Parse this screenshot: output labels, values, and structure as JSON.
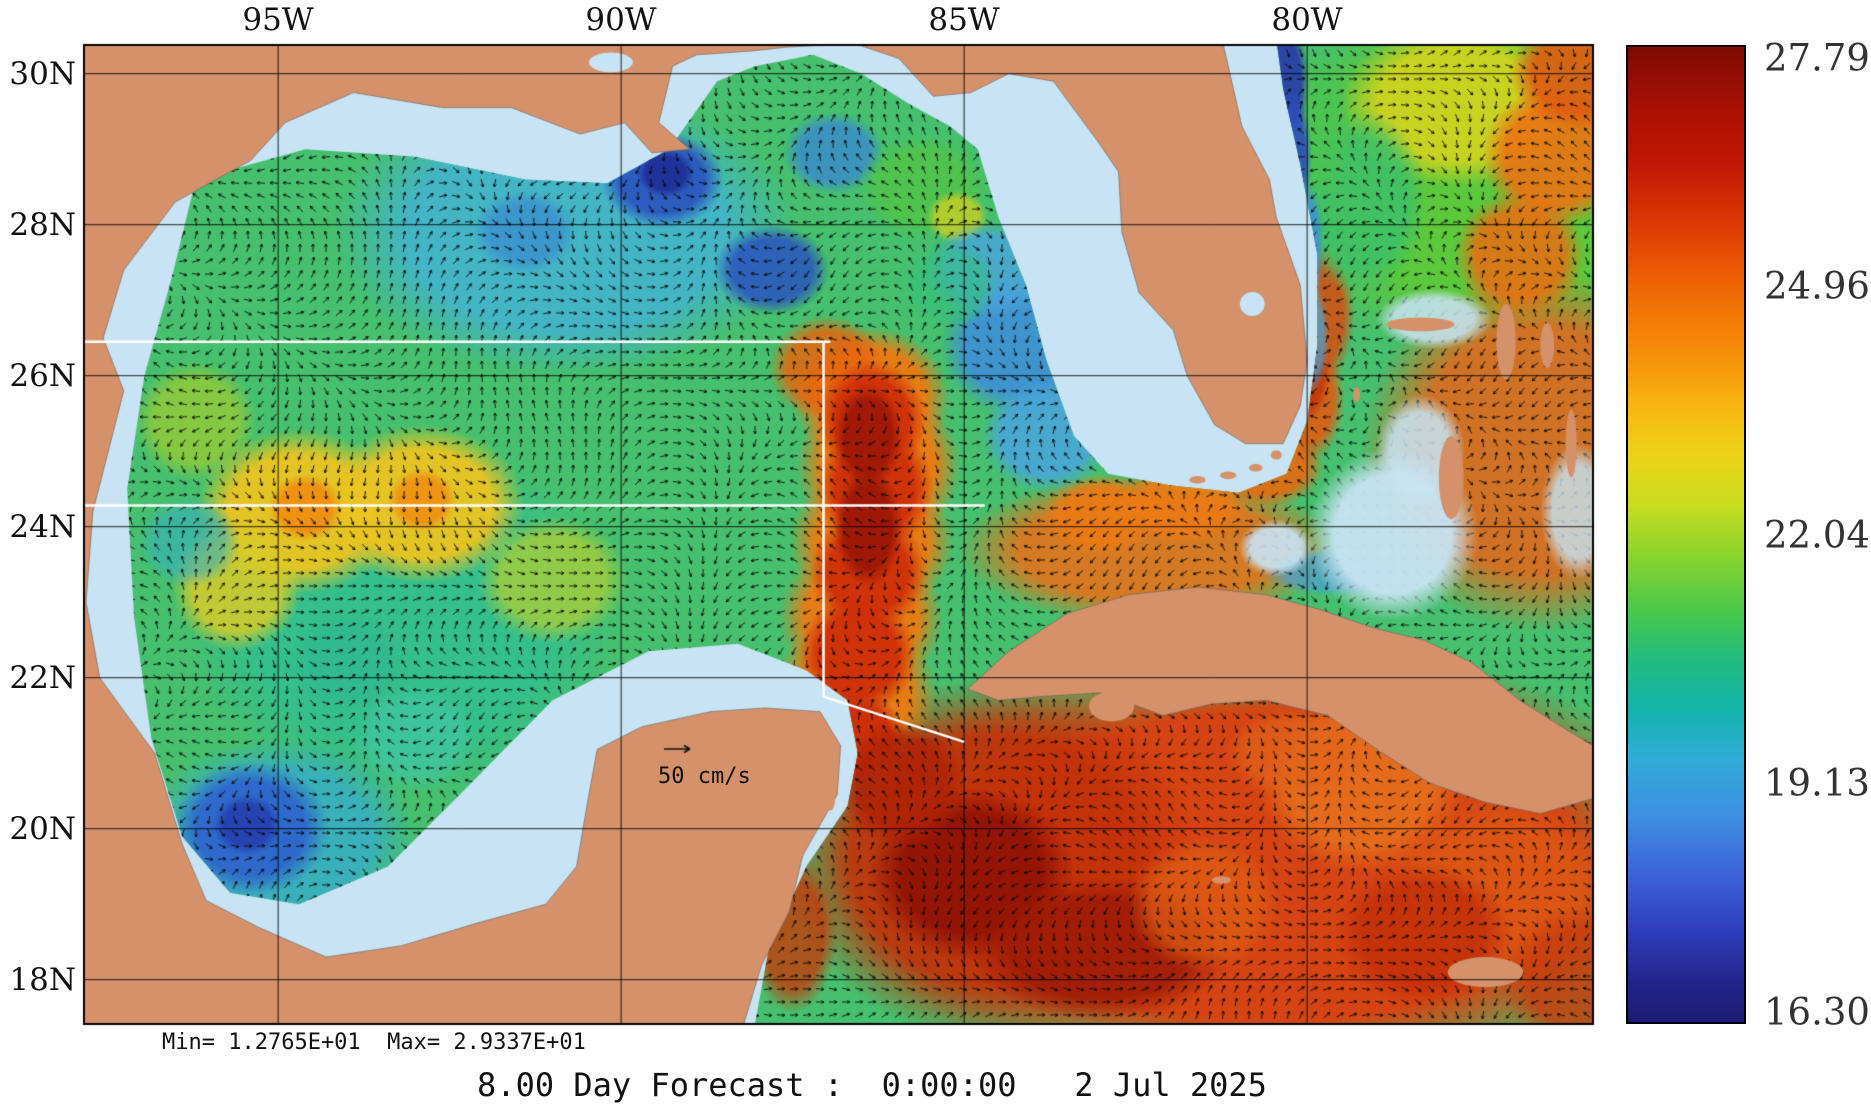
{
  "figure": {
    "caption": "8.00 Day Forecast :  0:00:00   2 Jul 2025",
    "stats_line": "Min= 1.2765E+01  Max= 2.9337E+01",
    "scale_label": "50 cm/s"
  },
  "axes": {
    "lon_labels": [
      "95W",
      "90W",
      "85W",
      "80W"
    ],
    "lat_labels": [
      "30N",
      "28N",
      "26N",
      "24N",
      "22N",
      "20N",
      "18N"
    ]
  },
  "colorbar": {
    "tick_labels": [
      "27.79",
      "24.96",
      "22.04",
      "19.13",
      "16.30"
    ],
    "max_value": 27.79,
    "min_value": 16.3,
    "gradient": [
      "#7c0a02 0%",
      "#a81004 6%",
      "#c11605 12%",
      "#dc3805 18%",
      "#ee6205 24%",
      "#f68c08 31%",
      "#f8b612 37%",
      "#ecd418 42%",
      "#c8dc20 47%",
      "#8cd42c 52%",
      "#48c84c 58%",
      "#20bc80 63%",
      "#14b4ac 68%",
      "#30acd8 73%",
      "#3e8ee2 79%",
      "#3c62d8 85%",
      "#2e3cba 91%",
      "#222488 96%",
      "#1c1c74 100%"
    ]
  },
  "palette": {
    "land": "#d5916a",
    "shallow_water": "#c8e4f4",
    "field_base": "#46c06e",
    "grid_line": "#000000",
    "transect_line": "#ffffff",
    "background": "#ffffff"
  },
  "chart_data": {
    "type": "heatmap",
    "title": "8.00 Day Forecast :  0:00:00   2 Jul 2025",
    "description": "Color field with overlaid current vector arrows over the Gulf of Mexico, Florida, Cuba and northwest Caribbean; land tan, shallow banks light blue",
    "x_axis": {
      "label": "longitude",
      "tick_labels": [
        "95W",
        "90W",
        "85W",
        "80W"
      ]
    },
    "y_axis": {
      "label": "latitude",
      "tick_labels": [
        "30N",
        "28N",
        "26N",
        "24N",
        "22N",
        "20N",
        "18N"
      ]
    },
    "colorbar_ticks": [
      27.79,
      24.96,
      22.04,
      19.13,
      16.3
    ],
    "colorbar_range": [
      16.3,
      27.79
    ],
    "field_min": "1.2765E+01",
    "field_max": "2.9337E+01",
    "vector_scale": "50 cm/s",
    "legend_position": "right",
    "grid": true
  }
}
